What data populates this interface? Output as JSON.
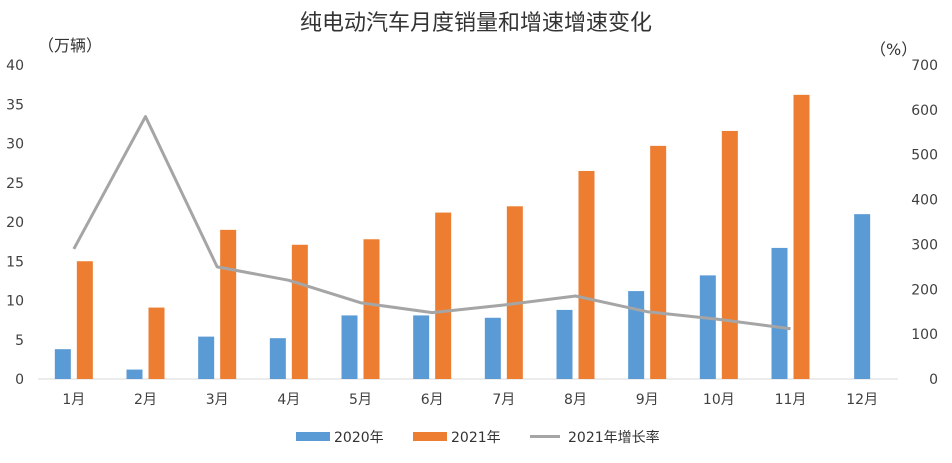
{
  "chart_data": {
    "type": "bar",
    "title": "纯电动汽车月度销量和增速增速变化",
    "ylabel_left": "（万辆）",
    "ylabel_right": "（%）",
    "categories": [
      "1月",
      "2月",
      "3月",
      "4月",
      "5月",
      "6月",
      "7月",
      "8月",
      "9月",
      "10月",
      "11月",
      "12月"
    ],
    "series": [
      {
        "name": "2020年",
        "kind": "bar",
        "axis": "left",
        "color": "#5B9BD5",
        "values": [
          3.8,
          1.2,
          5.4,
          5.2,
          8.1,
          8.1,
          7.8,
          8.8,
          11.2,
          13.2,
          16.7,
          21.0
        ]
      },
      {
        "name": "2021年",
        "kind": "bar",
        "axis": "left",
        "color": "#ED7D31",
        "values": [
          15.0,
          9.1,
          19.0,
          17.1,
          17.8,
          21.2,
          22.0,
          26.5,
          29.7,
          31.6,
          36.2,
          null
        ]
      },
      {
        "name": "2021年增长率",
        "kind": "line",
        "axis": "right",
        "color": "#A5A5A5",
        "values": [
          290,
          585,
          250,
          220,
          170,
          148,
          165,
          185,
          150,
          133,
          112,
          null
        ]
      }
    ],
    "ylim_left": [
      0,
      40
    ],
    "yticks_left": [
      0,
      5,
      10,
      15,
      20,
      25,
      30,
      35,
      40
    ],
    "ylim_right": [
      0,
      700
    ],
    "yticks_right": [
      0,
      100,
      200,
      300,
      400,
      500,
      600,
      700
    ],
    "grid": false,
    "legend_position": "bottom"
  }
}
